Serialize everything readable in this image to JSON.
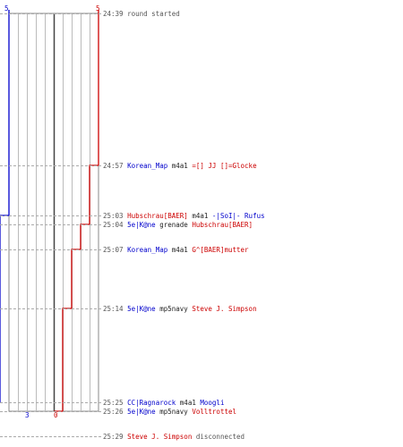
{
  "chart_data": {
    "type": "line",
    "title": "",
    "xlabel": "",
    "ylabel": "",
    "teams": [
      {
        "name": "blue",
        "color": "#0000cc",
        "start": 5,
        "end": 3
      },
      {
        "name": "red",
        "color": "#cc0000",
        "start": 5,
        "end": 0
      }
    ],
    "x_axis": {
      "min": 0,
      "max": 10,
      "grid": true
    },
    "series": [
      {
        "team": "blue",
        "points": [
          {
            "t": "24:39",
            "alive": 5
          },
          {
            "t": "25:03",
            "alive": 4
          },
          {
            "t": "25:25",
            "alive": 3
          }
        ]
      },
      {
        "team": "red",
        "points": [
          {
            "t": "24:39",
            "alive": 5
          },
          {
            "t": "24:57",
            "alive": 4
          },
          {
            "t": "25:04",
            "alive": 3
          },
          {
            "t": "25:07",
            "alive": 2
          },
          {
            "t": "25:14",
            "alive": 1
          },
          {
            "t": "25:26",
            "alive": 0
          }
        ]
      }
    ],
    "events": [
      {
        "time": "24:39",
        "text": "round started",
        "type": "info"
      },
      {
        "time": "24:57",
        "killer": "Korean_Map",
        "killer_team": "blue",
        "weapon": "m4a1",
        "victim": "=[] JJ []=Glocke",
        "victim_team": "red"
      },
      {
        "time": "25:03",
        "killer": "Hubschrau[BAER]",
        "killer_team": "red",
        "weapon": "m4a1",
        "victim": "-|SoI|- Rufus",
        "victim_team": "blue"
      },
      {
        "time": "25:04",
        "killer": "5e|K@ne",
        "killer_team": "blue",
        "weapon": "grenade",
        "victim": "Hubschrau[BAER]",
        "victim_team": "red"
      },
      {
        "time": "25:07",
        "killer": "Korean_Map",
        "killer_team": "blue",
        "weapon": "m4a1",
        "victim": "G^[BAER]mutter",
        "victim_team": "red"
      },
      {
        "time": "25:14",
        "killer": "5e|K@ne",
        "killer_team": "blue",
        "weapon": "mp5navy",
        "victim": "Steve J. Simpson",
        "victim_team": "red"
      },
      {
        "time": "25:25",
        "killer": "CC|Ragnarock",
        "killer_team": "blue",
        "weapon": "m4a1",
        "victim": "Moogli",
        "victim_team": "blue"
      },
      {
        "time": "25:26",
        "killer": "5e|K@ne",
        "killer_team": "blue",
        "weapon": "mp5navy",
        "victim": "Volltrottel",
        "victim_team": "red"
      },
      {
        "time": "25:29",
        "text": "disconnected",
        "actor": "Steve J. Simpson",
        "actor_team": "red",
        "type": "disconnect"
      }
    ]
  }
}
